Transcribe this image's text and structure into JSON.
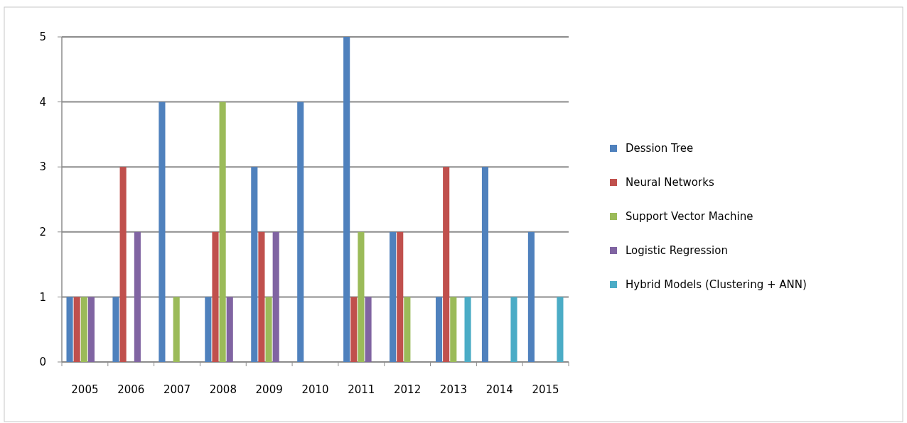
{
  "chart_data": {
    "type": "bar",
    "categories": [
      "2005",
      "2006",
      "2007",
      "2008",
      "2009",
      "2010",
      "2011",
      "2012",
      "2013",
      "2014",
      "2015"
    ],
    "series": [
      {
        "name": "Dession Tree",
        "color": "#4f81bd",
        "values": [
          1,
          1,
          4,
          1,
          3,
          4,
          5,
          2,
          1,
          3,
          2
        ]
      },
      {
        "name": "Neural Networks",
        "color": "#c0504d",
        "values": [
          1,
          3,
          0,
          2,
          2,
          0,
          1,
          2,
          3,
          0,
          0
        ]
      },
      {
        "name": "Support Vector Machine",
        "color": "#9bbb59",
        "values": [
          1,
          0,
          1,
          4,
          1,
          0,
          2,
          1,
          1,
          0,
          0
        ]
      },
      {
        "name": "Logistic Regression",
        "color": "#8064a2",
        "values": [
          1,
          2,
          0,
          1,
          2,
          0,
          1,
          0,
          0,
          0,
          0
        ]
      },
      {
        "name": "Hybrid Models  (Clustering + ANN)",
        "color": "#4bacc6",
        "values": [
          0,
          0,
          0,
          0,
          0,
          0,
          0,
          0,
          1,
          1,
          1
        ]
      }
    ],
    "ylim": [
      0,
      5
    ],
    "yticks": [
      0,
      1,
      2,
      3,
      4,
      5
    ],
    "grid": "y",
    "legend": "right"
  }
}
